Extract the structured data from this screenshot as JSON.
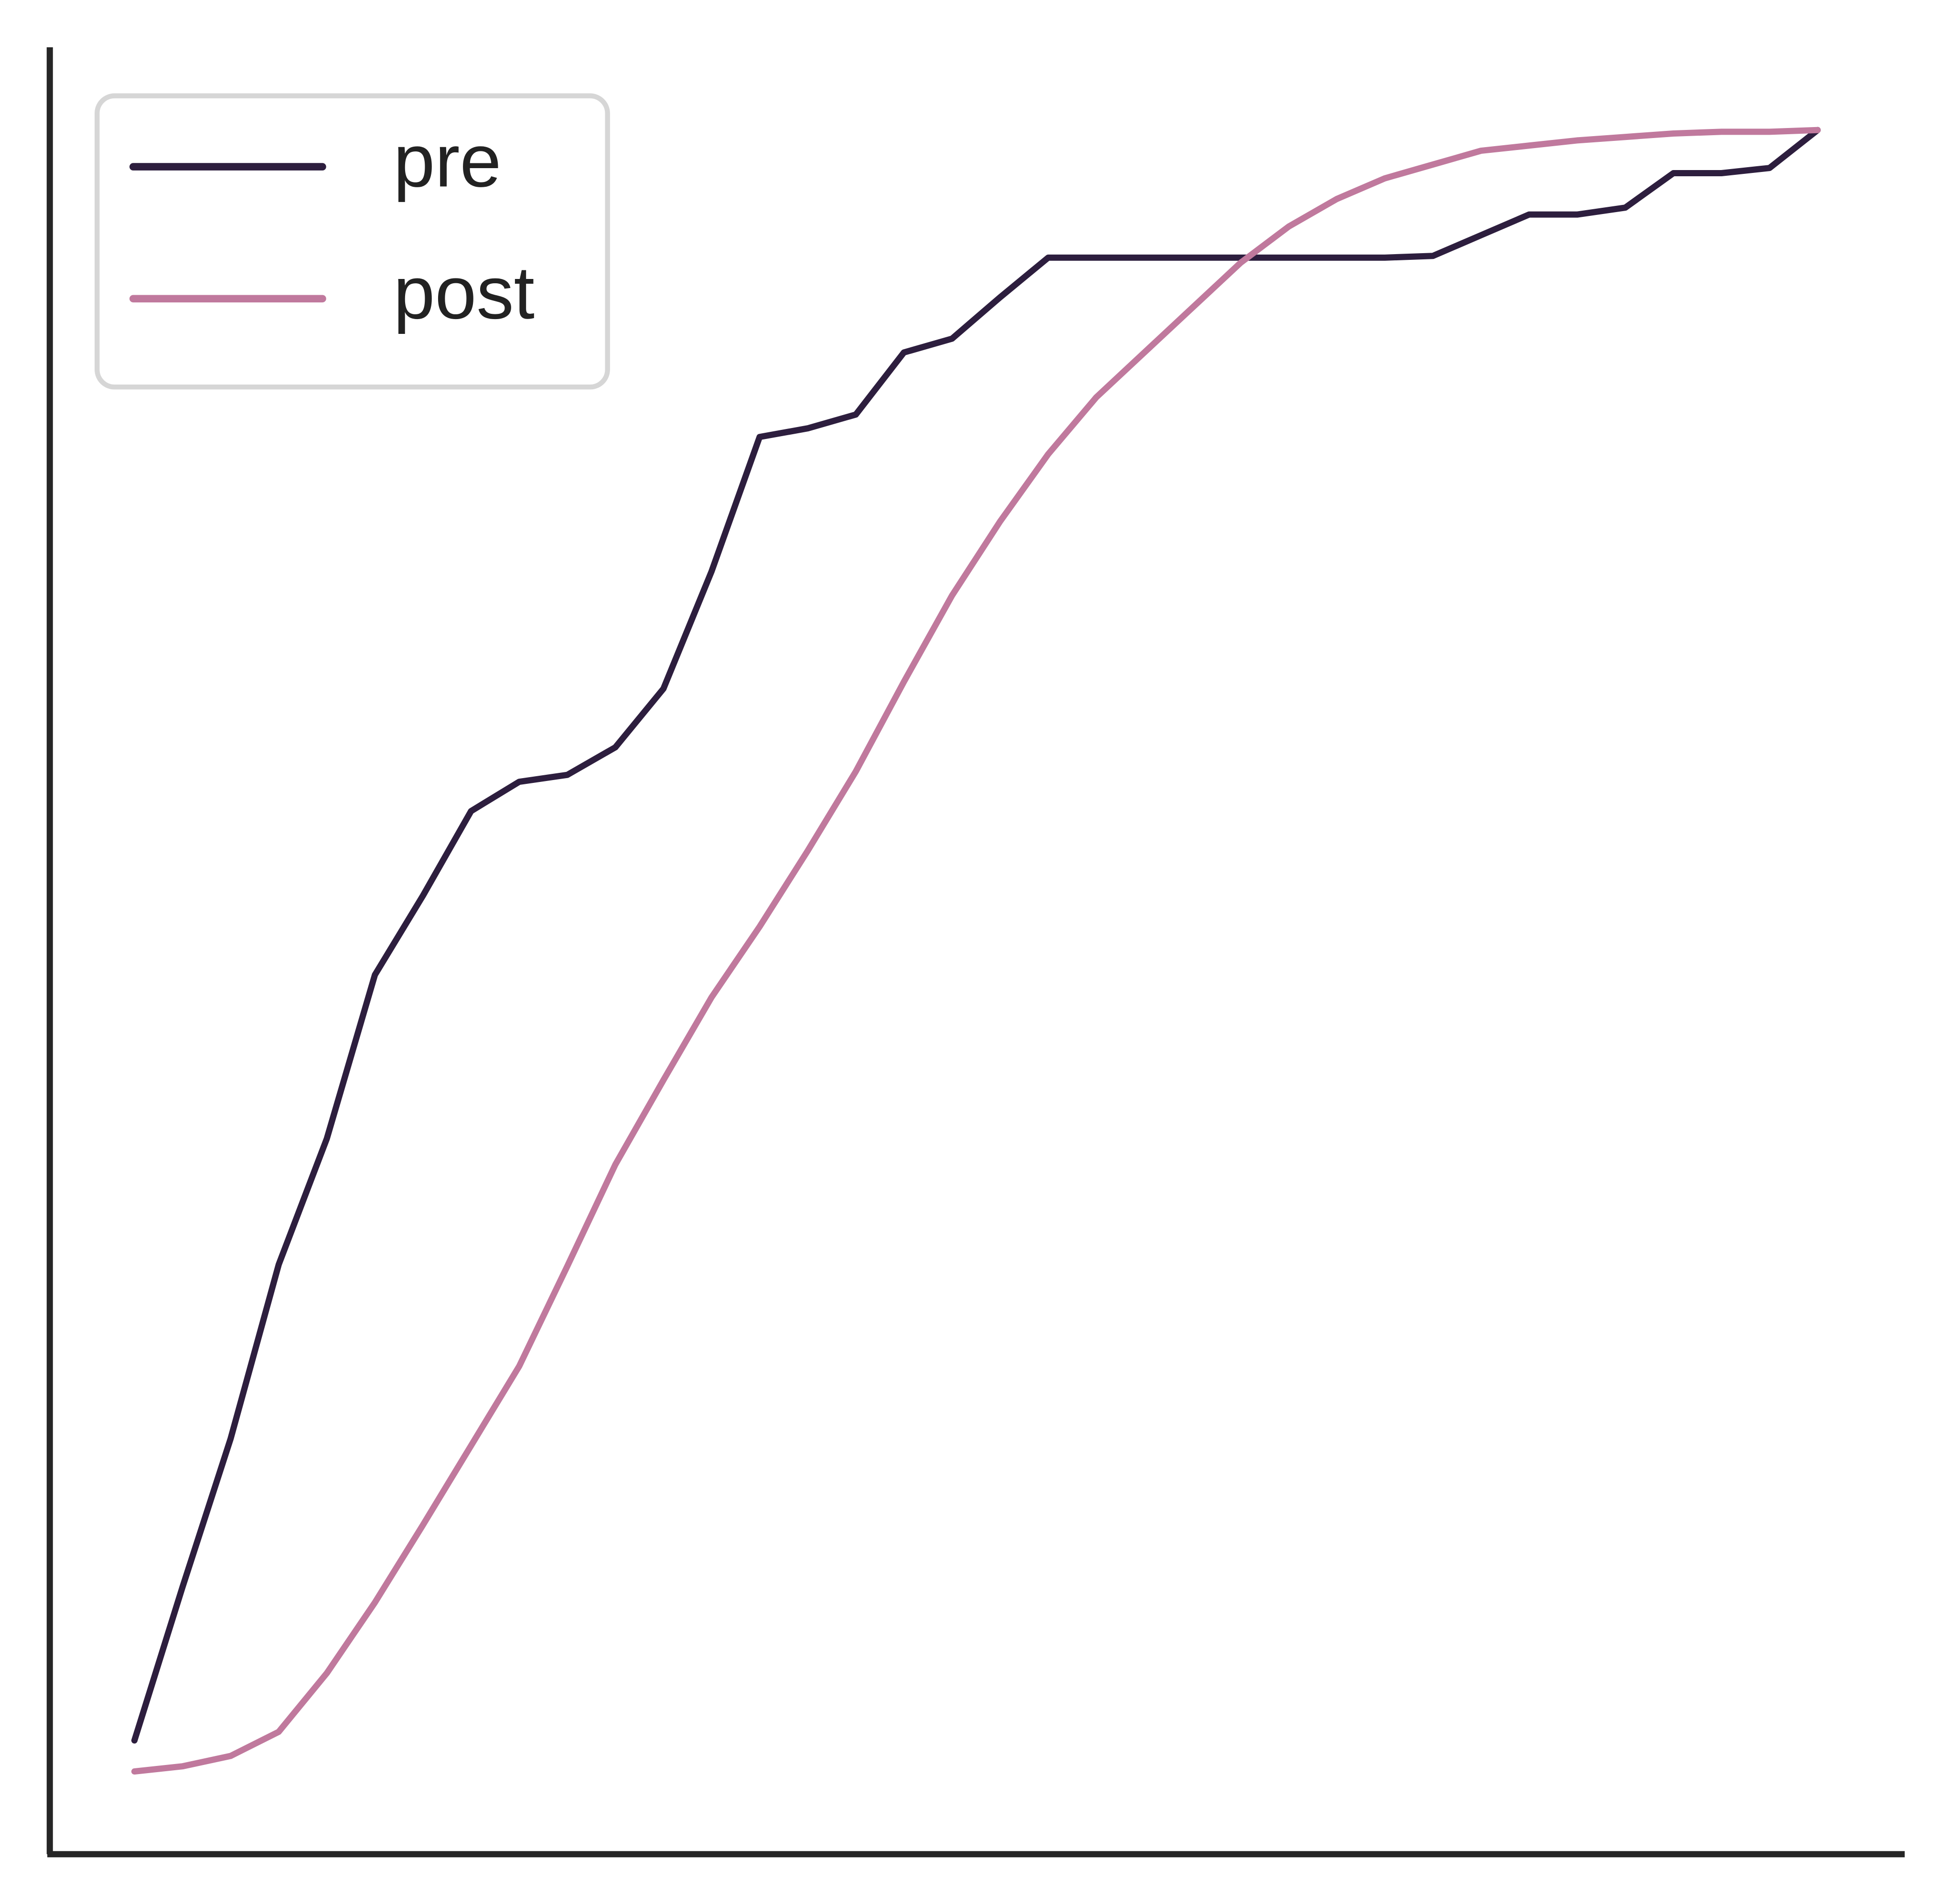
{
  "chart_data": {
    "type": "line",
    "x": [
      0,
      1,
      2,
      3,
      4,
      5,
      6,
      7,
      8,
      9,
      10,
      11,
      12,
      13,
      14,
      15,
      16,
      17,
      18,
      19,
      20,
      21,
      22,
      23,
      24,
      25,
      26,
      27,
      28,
      29,
      30,
      31,
      32,
      33,
      34,
      35
    ],
    "series": [
      {
        "name": "pre",
        "color": "#2d1e3e",
        "values": [
          0.066,
          0.155,
          0.241,
          0.342,
          0.415,
          0.51,
          0.556,
          0.605,
          0.622,
          0.626,
          0.642,
          0.676,
          0.744,
          0.822,
          0.827,
          0.835,
          0.871,
          0.879,
          0.903,
          0.926,
          0.926,
          0.926,
          0.926,
          0.926,
          0.926,
          0.926,
          0.926,
          0.927,
          0.939,
          0.951,
          0.951,
          0.955,
          0.975,
          0.975,
          0.978,
          1.0
        ]
      },
      {
        "name": "post",
        "color": "#c0799d",
        "values": [
          0.048,
          0.051,
          0.057,
          0.071,
          0.105,
          0.146,
          0.191,
          0.237,
          0.283,
          0.341,
          0.4,
          0.449,
          0.497,
          0.538,
          0.582,
          0.628,
          0.68,
          0.73,
          0.773,
          0.812,
          0.845,
          0.871,
          0.897,
          0.923,
          0.944,
          0.96,
          0.972,
          0.98,
          0.988,
          0.991,
          0.994,
          0.996,
          0.998,
          0.999,
          0.999,
          1.0
        ]
      }
    ],
    "xlim": [
      -1.76,
      36.81
    ],
    "ylim": [
      0,
      1.048
    ],
    "legend": "upper-left"
  }
}
